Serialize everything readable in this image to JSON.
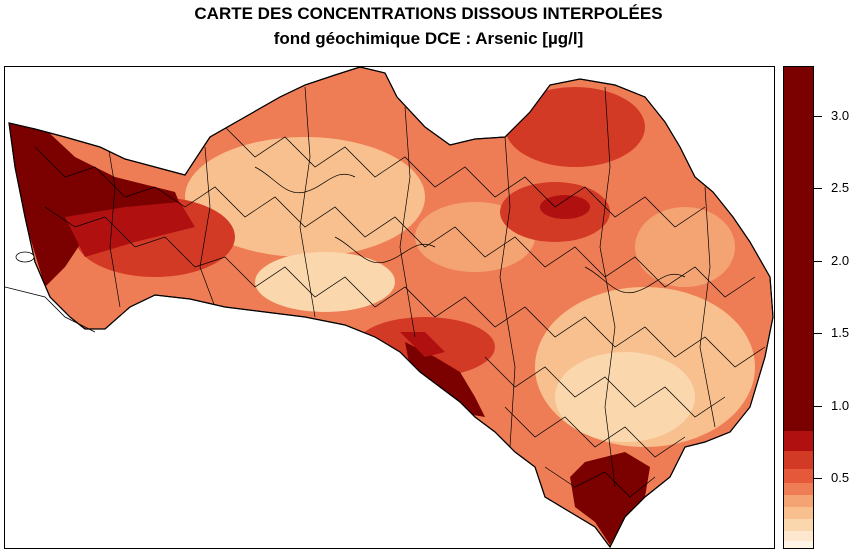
{
  "title": {
    "line1": "CARTE DES CONCENTRATIONS DISSOUS INTERPOLÉES",
    "line2": "fond géochimique DCE : Arsenic [µg/l]"
  },
  "legend": {
    "ticks": [
      {
        "value": 3.0,
        "label": "3.0"
      },
      {
        "value": 2.5,
        "label": "2.5"
      },
      {
        "value": 2.0,
        "label": "2.0"
      },
      {
        "value": 1.5,
        "label": "1.5"
      },
      {
        "value": 1.0,
        "label": "1.0"
      },
      {
        "value": 0.5,
        "label": "0.5"
      }
    ],
    "colors": {
      "darkest": "#7b0000",
      "dark": "#b01010",
      "red": "#d23a26",
      "orange_red": "#e5583a",
      "orange": "#ee7d55",
      "light_orange": "#f4a373",
      "peach": "#f8c08e",
      "light_peach": "#fbd7ad",
      "cream": "#fde8cf",
      "pale": "#fff4e6",
      "boundary": "#000000"
    }
  }
}
